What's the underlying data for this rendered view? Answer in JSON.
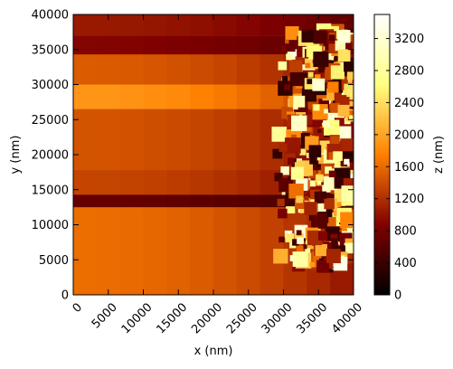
{
  "chart_data": {
    "type": "heatmap",
    "title": "",
    "xlabel": "x (nm)",
    "ylabel": "y (nm)",
    "xlim": [
      0,
      40000
    ],
    "ylim": [
      0,
      40000
    ],
    "xticks": [
      0,
      5000,
      10000,
      15000,
      20000,
      25000,
      30000,
      35000,
      40000
    ],
    "yticks": [
      0,
      5000,
      10000,
      15000,
      20000,
      25000,
      30000,
      35000,
      40000
    ],
    "x_tick_rotation_deg": 45,
    "colorbar": {
      "label": "z (nm)",
      "colormap": "afmhot",
      "range": [
        0,
        3500
      ],
      "ticks": [
        0,
        400,
        800,
        1200,
        1600,
        2000,
        2400,
        2800,
        3200
      ]
    },
    "grid": false,
    "description_of_surface": {
      "background_level_nm": 1550,
      "bands": [
        {
          "y_from": 0,
          "y_to": 12500,
          "z_nm": 1620
        },
        {
          "y_from": 12500,
          "y_to": 14300,
          "z_nm": 700
        },
        {
          "y_from": 14300,
          "y_to": 17800,
          "z_nm": 1350
        },
        {
          "y_from": 17800,
          "y_to": 26500,
          "z_nm": 1450
        },
        {
          "y_from": 26500,
          "y_to": 30000,
          "z_nm": 1900
        },
        {
          "y_from": 30000,
          "y_to": 34300,
          "z_nm": 1500
        },
        {
          "y_from": 34300,
          "y_to": 37000,
          "z_nm": 900
        },
        {
          "y_from": 37000,
          "y_to": 40000,
          "z_nm": 1050
        }
      ],
      "rough_region_x_from_nm": 29000,
      "rough_region_z_range_nm": [
        300,
        3400
      ]
    }
  }
}
